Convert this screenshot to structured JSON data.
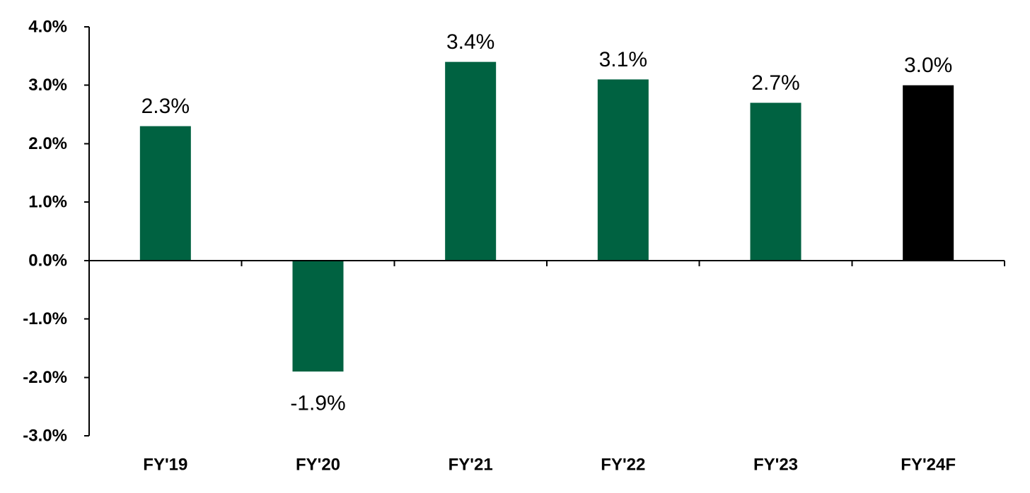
{
  "chart_data": {
    "type": "bar",
    "title": "",
    "xlabel": "",
    "ylabel": "",
    "categories": [
      "FY'19",
      "FY'20",
      "FY'21",
      "FY'22",
      "FY'23",
      "FY'24F"
    ],
    "values": [
      2.3,
      -1.9,
      3.4,
      3.1,
      2.7,
      3.0
    ],
    "data_labels": [
      "2.3%",
      "-1.9%",
      "3.4%",
      "3.1%",
      "2.7%",
      "3.0%"
    ],
    "ylim": [
      -3.0,
      4.0
    ],
    "yticks": [
      4.0,
      3.0,
      2.0,
      1.0,
      0.0,
      -1.0,
      -2.0,
      -3.0
    ],
    "ytick_labels": [
      "4.0%",
      "3.0%",
      "2.0%",
      "1.0%",
      "0.0%",
      "-1.0%",
      "-2.0%",
      "-3.0%"
    ],
    "grid": false,
    "legend": "none",
    "colors": {
      "actual": "#006241",
      "forecast": "#000000",
      "axis": "#000000",
      "text": "#000000"
    },
    "bar_colors": [
      "#006241",
      "#006241",
      "#006241",
      "#006241",
      "#006241",
      "#000000"
    ]
  }
}
